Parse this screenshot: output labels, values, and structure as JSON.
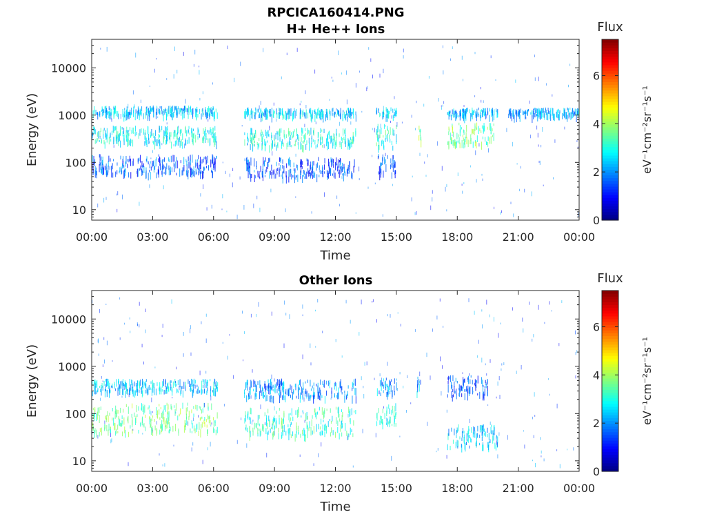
{
  "figure": {
    "title_line1": "RPCICA160414.PNG",
    "title_line2": "H+ He++ Ions",
    "background": "#ffffff"
  },
  "chart_data": [
    {
      "type": "heatmap",
      "title": "H+ He++ Ions",
      "xlabel": "Time",
      "ylabel": "Energy (eV)",
      "x_ticks": [
        "00:00",
        "03:00",
        "06:00",
        "09:00",
        "12:00",
        "15:00",
        "18:00",
        "21:00",
        "00:00"
      ],
      "x_range_hours": [
        0,
        24
      ],
      "y_scale": "log",
      "y_range": [
        6,
        40000
      ],
      "y_ticks": [
        10,
        100,
        1000,
        10000
      ],
      "y_tick_labels": [
        "10",
        "100",
        "1000",
        "10000"
      ],
      "colorbar": {
        "title": "Flux",
        "label": "eV⁻¹cm⁻²sr⁻¹s⁻¹",
        "range": [
          0,
          7.5
        ],
        "ticks": [
          0,
          2,
          4,
          6
        ],
        "tick_labels": [
          "0",
          "2",
          "4",
          "6"
        ],
        "colormap": "jet"
      },
      "bands": [
        {
          "t_start": 0.0,
          "t_end": 6.2,
          "e_low": 270,
          "e_high": 600,
          "flux": 2.8
        },
        {
          "t_start": 0.0,
          "t_end": 6.2,
          "e_low": 1050,
          "e_high": 1600,
          "flux": 2.4
        },
        {
          "t_start": 0.0,
          "t_end": 6.2,
          "e_low": 60,
          "e_high": 150,
          "flux": 1.6
        },
        {
          "t_start": 7.5,
          "t_end": 13.0,
          "e_low": 230,
          "e_high": 550,
          "flux": 2.9
        },
        {
          "t_start": 7.5,
          "t_end": 13.0,
          "e_low": 1000,
          "e_high": 1450,
          "flux": 2.5
        },
        {
          "t_start": 7.5,
          "t_end": 13.0,
          "e_low": 50,
          "e_high": 130,
          "flux": 1.5
        },
        {
          "t_start": 14.0,
          "t_end": 15.0,
          "e_low": 220,
          "e_high": 650,
          "flux": 3.0
        },
        {
          "t_start": 14.0,
          "t_end": 15.0,
          "e_low": 1000,
          "e_high": 1500,
          "flux": 2.5
        },
        {
          "t_start": 14.0,
          "t_end": 15.0,
          "e_low": 60,
          "e_high": 150,
          "flux": 1.4
        },
        {
          "t_start": 16.0,
          "t_end": 16.2,
          "e_low": 300,
          "e_high": 700,
          "flux": 3.8
        },
        {
          "t_start": 17.5,
          "t_end": 19.8,
          "e_low": 260,
          "e_high": 700,
          "flux": 3.6
        },
        {
          "t_start": 17.5,
          "t_end": 20.0,
          "e_low": 1000,
          "e_high": 1450,
          "flux": 2.3
        },
        {
          "t_start": 20.5,
          "t_end": 24.0,
          "e_low": 1000,
          "e_high": 1450,
          "flux": 2.2
        }
      ]
    },
    {
      "type": "heatmap",
      "title": "Other Ions",
      "xlabel": "Time",
      "ylabel": "Energy (eV)",
      "x_ticks": [
        "00:00",
        "03:00",
        "06:00",
        "09:00",
        "12:00",
        "15:00",
        "18:00",
        "21:00",
        "00:00"
      ],
      "x_range_hours": [
        0,
        24
      ],
      "y_scale": "log",
      "y_range": [
        6,
        40000
      ],
      "y_ticks": [
        10,
        100,
        1000,
        10000
      ],
      "y_tick_labels": [
        "10",
        "100",
        "1000",
        "10000"
      ],
      "colorbar": {
        "title": "Flux",
        "label": "eV⁻¹cm⁻²sr⁻¹s⁻¹",
        "range": [
          0,
          7.5
        ],
        "ticks": [
          0,
          2,
          4,
          6
        ],
        "tick_labels": [
          "0",
          "2",
          "4",
          "6"
        ],
        "colormap": "jet"
      },
      "bands": [
        {
          "t_start": 0.0,
          "t_end": 6.2,
          "e_low": 300,
          "e_high": 550,
          "flux": 2.4
        },
        {
          "t_start": 0.0,
          "t_end": 6.2,
          "e_low": 40,
          "e_high": 170,
          "flux": 3.6
        },
        {
          "t_start": 7.5,
          "t_end": 13.0,
          "e_low": 230,
          "e_high": 550,
          "flux": 2.0
        },
        {
          "t_start": 7.5,
          "t_end": 13.0,
          "e_low": 35,
          "e_high": 140,
          "flux": 3.2
        },
        {
          "t_start": 14.0,
          "t_end": 15.0,
          "e_low": 280,
          "e_high": 580,
          "flux": 2.1
        },
        {
          "t_start": 14.0,
          "t_end": 15.0,
          "e_low": 60,
          "e_high": 170,
          "flux": 3.2
        },
        {
          "t_start": 16.0,
          "t_end": 16.2,
          "e_low": 300,
          "e_high": 620,
          "flux": 2.2
        },
        {
          "t_start": 17.5,
          "t_end": 19.5,
          "e_low": 250,
          "e_high": 650,
          "flux": 1.5
        },
        {
          "t_start": 17.5,
          "t_end": 20.0,
          "e_low": 20,
          "e_high": 60,
          "flux": 2.4
        }
      ]
    }
  ]
}
